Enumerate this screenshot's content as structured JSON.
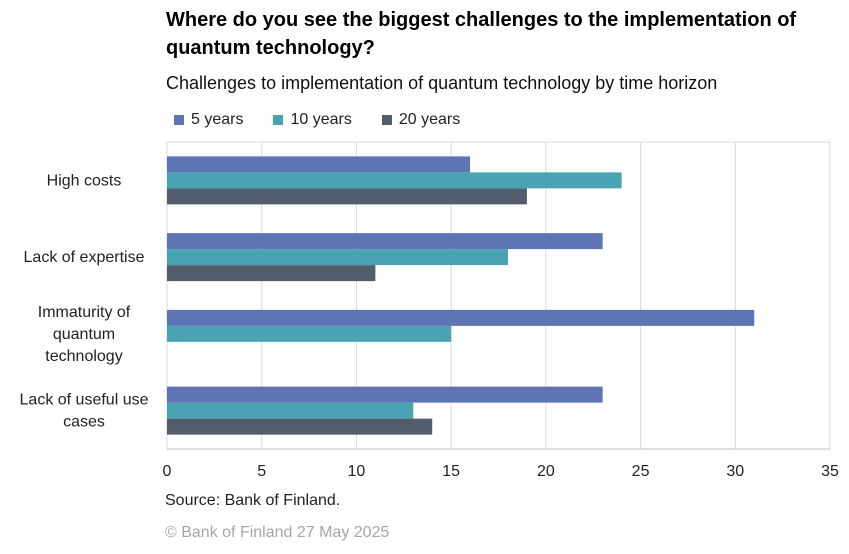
{
  "chart_data": {
    "type": "bar",
    "orientation": "horizontal",
    "title": "Where do you see the biggest challenges to the implementation of quantum technology?",
    "subtitle": "Challenges to implementation of quantum technology by time horizon",
    "categories": [
      [
        "High costs"
      ],
      [
        "Lack of expertise"
      ],
      [
        "Immaturity of",
        "quantum",
        "technology"
      ],
      [
        "Lack of useful use",
        "cases"
      ]
    ],
    "series": [
      {
        "name": "5 years",
        "color": "#5f74b4",
        "values": [
          16,
          23,
          31,
          23
        ]
      },
      {
        "name": "10 years",
        "color": "#4aa3b2",
        "values": [
          24,
          18,
          15,
          13
        ]
      },
      {
        "name": "20 years",
        "color": "#535e6d",
        "values": [
          19,
          11,
          0,
          14
        ]
      }
    ],
    "xlim": [
      0,
      35
    ],
    "xticks": [
      0,
      5,
      10,
      15,
      20,
      25,
      30,
      35
    ],
    "grid": true,
    "legend_position": "top-left"
  },
  "source": "Source: Bank of Finland.",
  "copyright": "© Bank of Finland 27 May 2025"
}
